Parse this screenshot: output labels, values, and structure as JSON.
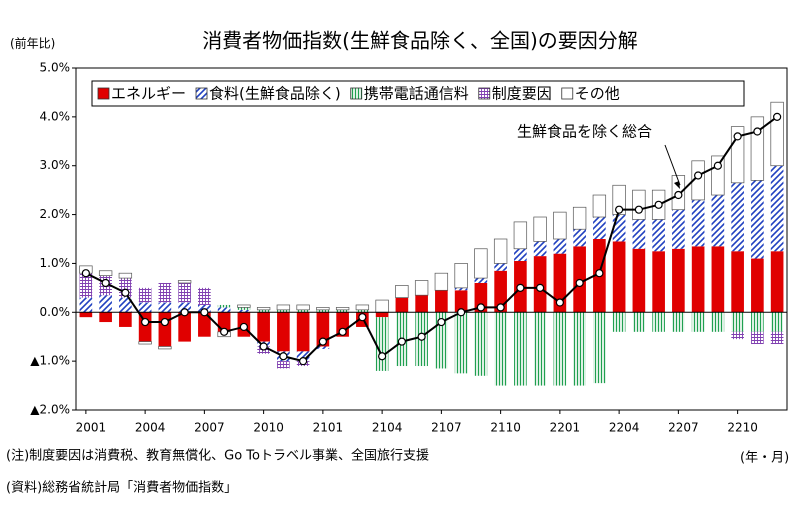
{
  "chart_data": {
    "type": "bar",
    "title": "消費者物価指数(生鮮食品除く、全国)の要因分解",
    "y_axis_label": "(前年比)",
    "x_axis_label": "(年・月)",
    "notes": [
      "(注)制度要因は消費税、教育無償化、Go Toトラベル事業、全国旅行支援",
      "(資料)総務省統計局「消費者物価指数」"
    ],
    "annotation": "生鮮食品を除く総合",
    "categories": [
      "2001",
      null,
      null,
      "2004",
      null,
      null,
      "2007",
      null,
      null,
      "2010",
      null,
      null,
      "2101",
      null,
      null,
      "2104",
      null,
      null,
      "2107",
      null,
      null,
      "2110",
      null,
      null,
      "2201",
      null,
      null,
      "2204",
      null,
      null,
      "2207",
      null,
      null,
      "2210",
      null,
      null
    ],
    "ylim": [
      -2.0,
      5.0
    ],
    "yticks": [
      {
        "value": 5.0,
        "label": "5.0%"
      },
      {
        "value": 4.0,
        "label": "4.0%"
      },
      {
        "value": 3.0,
        "label": "3.0%"
      },
      {
        "value": 2.0,
        "label": "2.0%"
      },
      {
        "value": 1.0,
        "label": "1.0%"
      },
      {
        "value": 0.0,
        "label": "0.0%"
      },
      {
        "value": -1.0,
        "label": "▲1.0%"
      },
      {
        "value": -2.0,
        "label": "▲2.0%"
      }
    ],
    "series": [
      {
        "name": "エネルギー",
        "color": "#e00000",
        "pattern": "solid",
        "values": [
          -0.1,
          -0.2,
          -0.3,
          -0.6,
          -0.7,
          -0.6,
          -0.5,
          -0.4,
          -0.5,
          -0.6,
          -0.8,
          -0.8,
          -0.7,
          -0.5,
          -0.3,
          -0.1,
          0.3,
          0.35,
          0.45,
          0.45,
          0.6,
          0.85,
          1.05,
          1.15,
          1.2,
          1.35,
          1.5,
          1.45,
          1.3,
          1.25,
          1.3,
          1.35,
          1.35,
          1.25,
          1.1,
          1.25
        ]
      },
      {
        "name": "食料(生鮮食品除く)",
        "color": "#2040c0",
        "pattern": "diagonal",
        "values": [
          0.3,
          0.35,
          0.3,
          0.2,
          0.2,
          0.2,
          0.15,
          0.1,
          0.05,
          -0.1,
          -0.2,
          -0.2,
          -0.05,
          0,
          0,
          0,
          0,
          0,
          0,
          0.05,
          0.1,
          0.15,
          0.25,
          0.3,
          0.3,
          0.35,
          0.45,
          0.55,
          0.6,
          0.65,
          0.8,
          0.95,
          1.05,
          1.4,
          1.6,
          1.75
        ]
      },
      {
        "name": "携帯電話通信料",
        "color": "#20a050",
        "pattern": "vertical",
        "values": [
          0,
          0,
          0,
          0,
          0,
          0,
          0,
          0.05,
          0.05,
          0.05,
          0.05,
          0.05,
          0.05,
          0.05,
          0.05,
          -1.1,
          -1.1,
          -1.1,
          -1.15,
          -1.25,
          -1.3,
          -1.5,
          -1.5,
          -1.5,
          -1.5,
          -1.5,
          -1.45,
          -0.4,
          -0.4,
          -0.4,
          -0.4,
          -0.4,
          -0.4,
          -0.4,
          -0.4,
          -0.4
        ]
      },
      {
        "name": "制度要因",
        "color": "#8040b0",
        "pattern": "grid",
        "values": [
          0.5,
          0.4,
          0.4,
          0.3,
          0.4,
          0.4,
          0.35,
          0,
          0,
          -0.15,
          -0.15,
          -0.1,
          0,
          0,
          0,
          0,
          0,
          0,
          0,
          0,
          0,
          0,
          0,
          0,
          0,
          0,
          0,
          0,
          0,
          0,
          0,
          0,
          0,
          -0.15,
          -0.25,
          -0.25
        ]
      },
      {
        "name": "その他",
        "color": "#ffffff",
        "pattern": "solid",
        "values": [
          0.15,
          0.1,
          0.1,
          -0.05,
          -0.05,
          0.05,
          0,
          -0.1,
          0.05,
          0.05,
          0.1,
          0.1,
          0.05,
          0.05,
          0.1,
          0.25,
          0.25,
          0.3,
          0.35,
          0.5,
          0.6,
          0.5,
          0.55,
          0.5,
          0.55,
          0.45,
          0.45,
          0.6,
          0.6,
          0.6,
          0.7,
          0.8,
          0.8,
          1.15,
          1.3,
          1.3
        ]
      }
    ],
    "line": {
      "name": "生鮮食品を除く総合",
      "color": "#000000",
      "values": [
        0.8,
        0.6,
        0.4,
        -0.2,
        -0.2,
        0.0,
        0.0,
        -0.4,
        -0.3,
        -0.7,
        -0.9,
        -1.0,
        -0.6,
        -0.4,
        -0.1,
        -0.9,
        -0.6,
        -0.5,
        -0.2,
        0.0,
        0.1,
        0.1,
        0.5,
        0.5,
        0.2,
        0.6,
        0.8,
        2.1,
        2.1,
        2.2,
        2.4,
        2.8,
        3.0,
        3.6,
        3.7,
        4.0
      ]
    }
  }
}
